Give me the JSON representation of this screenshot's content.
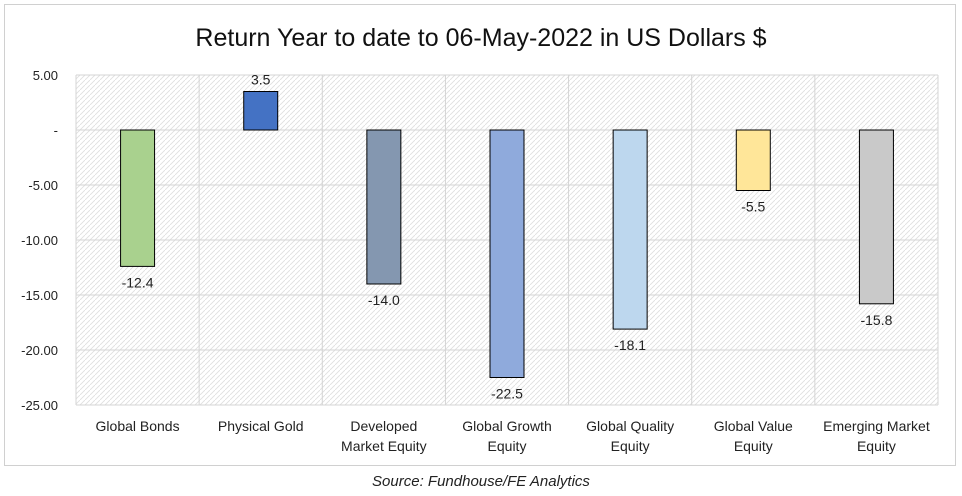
{
  "chart_data": {
    "type": "bar",
    "title": "Return Year to date to 06-May-2022 in US Dollars $",
    "xlabel": "",
    "ylabel": "",
    "ylim": [
      -25,
      5
    ],
    "y_ticks": [
      5,
      0,
      -5,
      -10,
      -15,
      -20,
      -25
    ],
    "y_tick_labels": [
      "5.00",
      "-",
      "-5.00",
      "-10.00",
      "-15.00",
      "-20.00",
      "-25.00"
    ],
    "grid": true,
    "legend": "none",
    "categories": [
      [
        "Global Bonds"
      ],
      [
        "Physical Gold"
      ],
      [
        "Developed",
        "Market Equity"
      ],
      [
        "Global Growth",
        "Equity"
      ],
      [
        "Global Quality",
        "Equity"
      ],
      [
        "Global Value",
        "Equity"
      ],
      [
        "Emerging Market",
        "Equity"
      ]
    ],
    "values": [
      -12.4,
      3.5,
      -14.0,
      -22.5,
      -18.1,
      -5.5,
      -15.8
    ],
    "value_labels": [
      "-12.4",
      "3.5",
      "-14.0",
      "-22.5",
      "-18.1",
      "-5.5",
      "-15.8"
    ],
    "colors": [
      "#a9d18e",
      "#4472c4",
      "#8497b0",
      "#8faadc",
      "#bdd7ee",
      "#ffe699",
      "#c9c9c9"
    ]
  },
  "source": "Source: Fundhouse/FE Analytics"
}
